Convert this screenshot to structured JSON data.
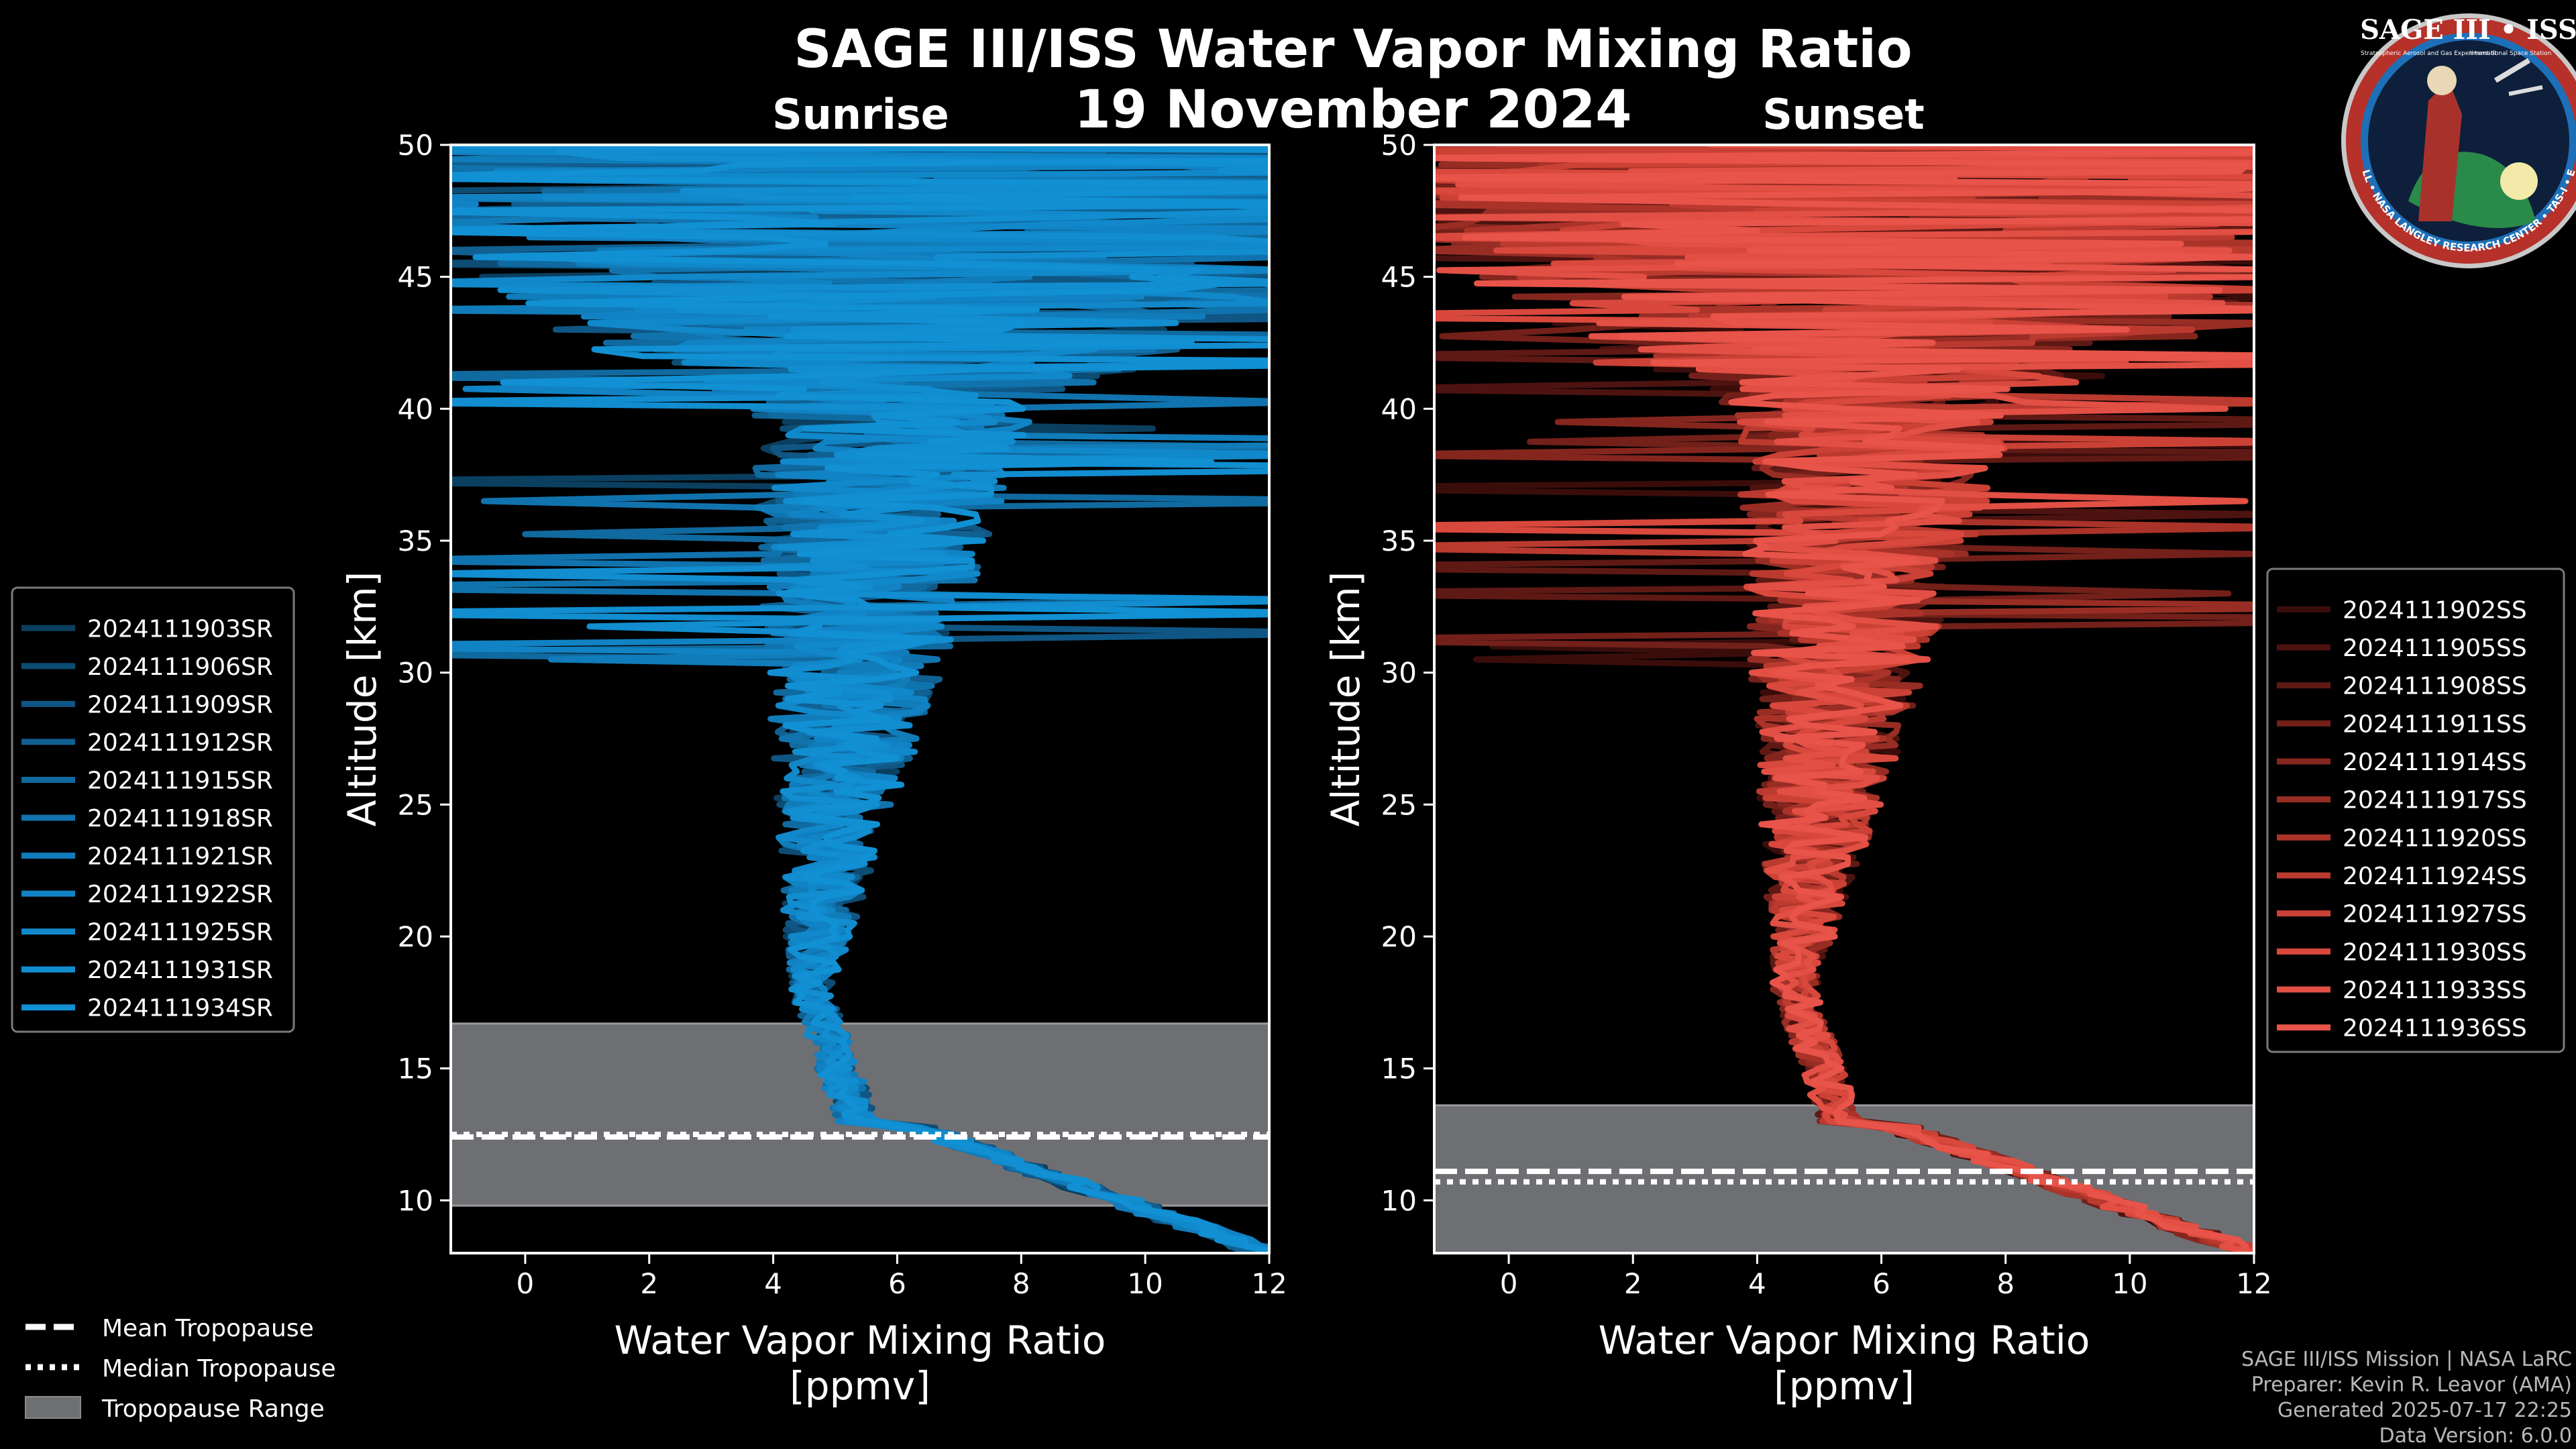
{
  "title": "SAGE III/ISS Water Vapor Mixing Ratio",
  "date": "19 November 2024",
  "logo": {
    "name": "SAGE III • ISS",
    "subtitle_left": "Stratospheric Aerosol and Gas Experiment III",
    "subtitle_right": "International Space Station",
    "ring_text": "BALL • NASA LANGLEY RESEARCH CENTER • TAS-I • ESA"
  },
  "credits": [
    "SAGE III/ISS Mission | NASA LaRC",
    "Preparer: Kevin R. Leavor (AMA)",
    "Generated 2025-07-17 22:25",
    "Data Version: 6.0.0"
  ],
  "bottom_legend": {
    "mean": "Mean Tropopause",
    "median": "Median Tropopause",
    "range": "Tropopause Range"
  },
  "colors": {
    "background": "#000000",
    "sunrise": "#1190d3",
    "sunset": "#e8544a",
    "tropopause_range": "#6e6f73"
  },
  "chart_data": [
    {
      "type": "line",
      "panel": "Sunrise",
      "title": "Sunrise",
      "xlabel": "Water Vapor Mixing Ratio\n[ppmv]",
      "ylabel": "Altitude [km]",
      "xlim": [
        -1.2,
        12
      ],
      "ylim": [
        8,
        50
      ],
      "xticks": [
        0,
        2,
        4,
        6,
        8,
        10,
        12
      ],
      "yticks": [
        10,
        15,
        20,
        25,
        30,
        35,
        40,
        45,
        50
      ],
      "tropopause": {
        "mean": 12.4,
        "median": 12.5,
        "range": [
          9.8,
          16.7
        ]
      },
      "profile_seed": 11,
      "series": [
        {
          "name": "2024111903SR",
          "color": "#0b3f5f"
        },
        {
          "name": "2024111906SR",
          "color": "#0d4c73"
        },
        {
          "name": "2024111909SR",
          "color": "#0f5684"
        },
        {
          "name": "2024111912SR",
          "color": "#106091"
        },
        {
          "name": "2024111915SR",
          "color": "#106a9f"
        },
        {
          "name": "2024111918SR",
          "color": "#1173ad"
        },
        {
          "name": "2024111921SR",
          "color": "#117cba"
        },
        {
          "name": "2024111922SR",
          "color": "#1182c3"
        },
        {
          "name": "2024111925SR",
          "color": "#1188ca"
        },
        {
          "name": "2024111931SR",
          "color": "#118dd0"
        },
        {
          "name": "2024111934SR",
          "color": "#1190d3"
        }
      ]
    },
    {
      "type": "line",
      "panel": "Sunset",
      "title": "Sunset",
      "xlabel": "Water Vapor Mixing Ratio\n[ppmv]",
      "ylabel": "Altitude [km]",
      "xlim": [
        -1.2,
        12
      ],
      "ylim": [
        8,
        50
      ],
      "xticks": [
        0,
        2,
        4,
        6,
        8,
        10,
        12
      ],
      "yticks": [
        10,
        15,
        20,
        25,
        30,
        35,
        40,
        45,
        50
      ],
      "tropopause": {
        "mean": 11.1,
        "median": 10.7,
        "range": [
          8,
          13.6
        ]
      },
      "profile_seed": 29,
      "series": [
        {
          "name": "2024111902SS",
          "color": "#3a0d0b"
        },
        {
          "name": "2024111905SS",
          "color": "#4d1310"
        },
        {
          "name": "2024111908SS",
          "color": "#5f1914"
        },
        {
          "name": "2024111911SS",
          "color": "#722019"
        },
        {
          "name": "2024111914SS",
          "color": "#85261e"
        },
        {
          "name": "2024111917SS",
          "color": "#982d24"
        },
        {
          "name": "2024111920SS",
          "color": "#aa3329"
        },
        {
          "name": "2024111924SS",
          "color": "#bb3a2f"
        },
        {
          "name": "2024111927SS",
          "color": "#cb4136"
        },
        {
          "name": "2024111930SS",
          "color": "#d8483d"
        },
        {
          "name": "2024111933SS",
          "color": "#e24f44"
        },
        {
          "name": "2024111936SS",
          "color": "#e8544a"
        }
      ]
    }
  ]
}
